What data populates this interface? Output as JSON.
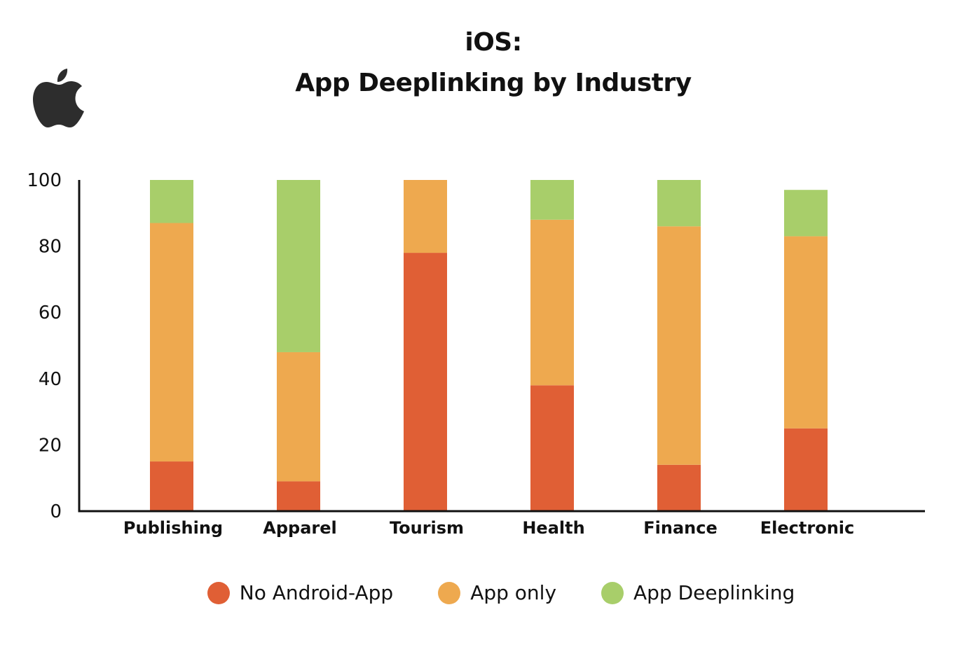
{
  "title_lines": [
    "iOS:",
    "App Deeplinking by Industry"
  ],
  "logo": "apple-logo",
  "chart_data": {
    "type": "bar",
    "stacked": true,
    "categories": [
      "Publishing",
      "Apparel",
      "Tourism",
      "Health",
      "Finance",
      "Electronic"
    ],
    "series": [
      {
        "name": "No Android-App",
        "color": "#e05f35",
        "values": [
          15,
          9,
          78,
          38,
          14,
          25
        ]
      },
      {
        "name": "App only",
        "color": "#eea94f",
        "values": [
          72,
          39,
          22,
          50,
          72,
          58
        ]
      },
      {
        "name": "App Deeplinking",
        "color": "#a8ce6a",
        "values": [
          13,
          52,
          0,
          12,
          14,
          14
        ]
      }
    ],
    "ylim": [
      0,
      100
    ],
    "yticks": [
      0,
      20,
      40,
      60,
      80,
      100
    ],
    "grid": false,
    "legend_position": "bottom"
  }
}
